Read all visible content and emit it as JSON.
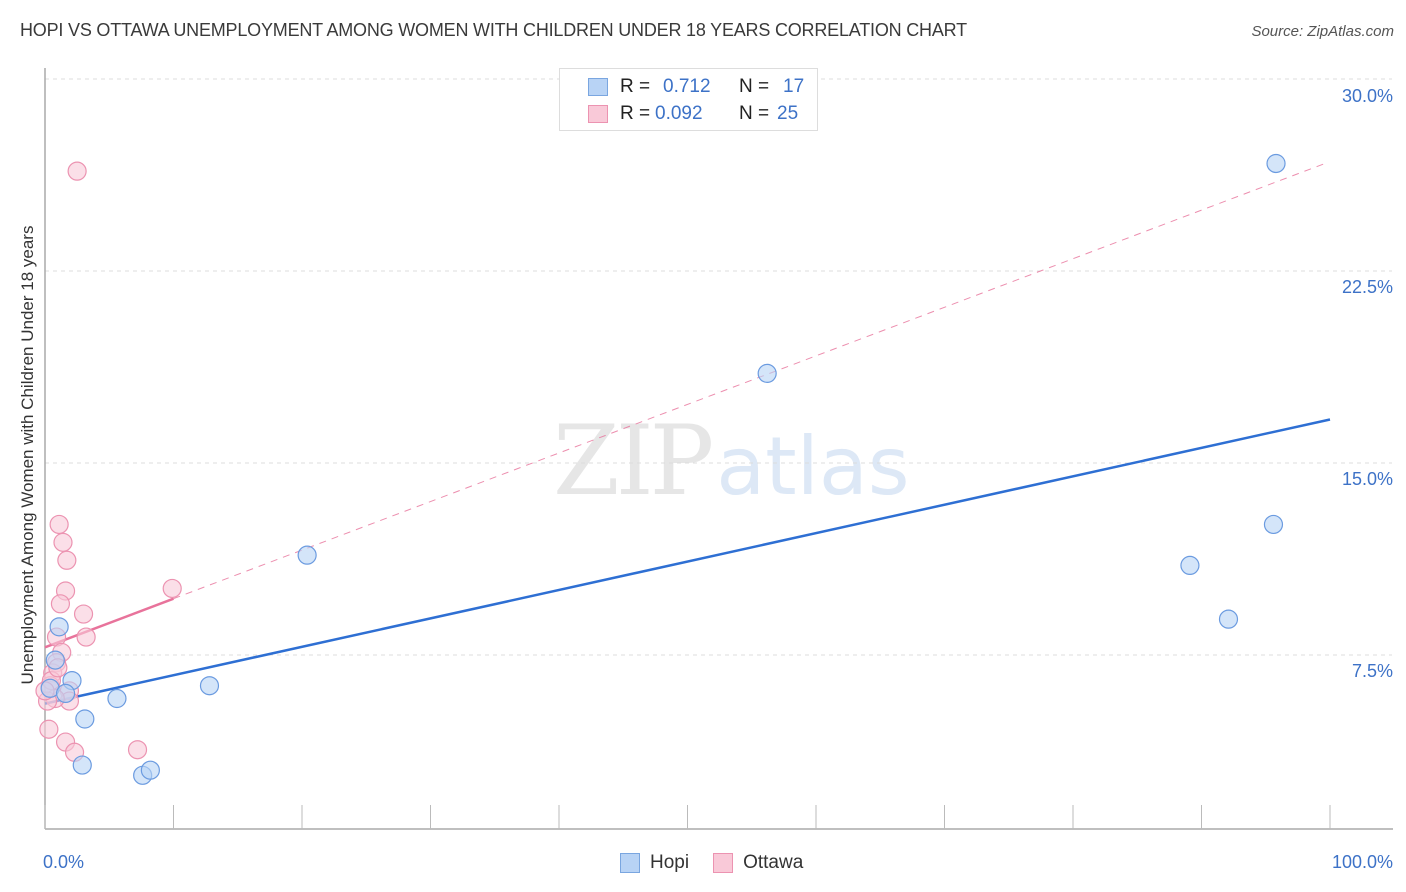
{
  "header": {
    "title": "HOPI VS OTTAWA UNEMPLOYMENT AMONG WOMEN WITH CHILDREN UNDER 18 YEARS CORRELATION CHART",
    "source": "Source: ZipAtlas.com"
  },
  "watermark": {
    "zip": "ZIP",
    "atlas": "atlas"
  },
  "axes": {
    "ylabel": "Unemployment Among Women with Children Under 18 years",
    "yticks": [
      "30.0%",
      "22.5%",
      "15.0%",
      "7.5%"
    ],
    "xticks": [
      "0.0%",
      "100.0%"
    ]
  },
  "legend": {
    "rows": [
      {
        "r_label": "R =",
        "r_value": "0.712",
        "n_label": "N =",
        "n_value": "17",
        "color": "#b8d3f5",
        "border": "#7aa6e0"
      },
      {
        "r_label": "R =",
        "r_value": "0.092",
        "n_label": "N =",
        "n_value": "25",
        "color": "#f9c9d8",
        "border": "#ec93b1"
      }
    ],
    "bottom": [
      "Hopi",
      "Ottawa"
    ]
  },
  "colors": {
    "hopi_fill": "#b8d3f5",
    "hopi_stroke": "#6b9be0",
    "hopi_line": "#2e6fd3",
    "ottawa_fill": "#f9c9d8",
    "ottawa_stroke": "#ec93b1",
    "ottawa_line": "#e8739b",
    "tick_text": "#3d72c7"
  },
  "chart_data": {
    "type": "scatter",
    "title": "HOPI VS OTTAWA UNEMPLOYMENT AMONG WOMEN WITH CHILDREN UNDER 18 YEARS CORRELATION CHART",
    "xlabel": "",
    "ylabel": "Unemployment Among Women with Children Under 18 years",
    "xlim": [
      0,
      100
    ],
    "ylim": [
      0,
      31
    ],
    "x_tick_labels": [
      "0.0%",
      "100.0%"
    ],
    "y_tick_labels": [
      "7.5%",
      "15.0%",
      "22.5%",
      "30.0%"
    ],
    "grid": true,
    "legend_position": "top-center and bottom",
    "series": [
      {
        "name": "Hopi",
        "R": 0.712,
        "N": 17,
        "points": [
          [
            95.8,
            26.7
          ],
          [
            56.2,
            18.5
          ],
          [
            20.4,
            11.4
          ],
          [
            95.6,
            12.6
          ],
          [
            89.1,
            11.0
          ],
          [
            92.1,
            8.9
          ],
          [
            12.8,
            6.3
          ],
          [
            5.6,
            5.8
          ],
          [
            3.1,
            5.0
          ],
          [
            2.9,
            3.2
          ],
          [
            7.6,
            2.8
          ],
          [
            8.2,
            3.0
          ],
          [
            1.1,
            8.6
          ],
          [
            2.1,
            6.5
          ],
          [
            0.8,
            7.3
          ],
          [
            0.4,
            6.2
          ],
          [
            1.6,
            6.0
          ]
        ],
        "trendline": {
          "x": [
            0,
            100
          ],
          "y": [
            5.6,
            16.7
          ],
          "style": "solid"
        }
      },
      {
        "name": "Ottawa",
        "R": 0.092,
        "N": 25,
        "points": [
          [
            2.5,
            26.4
          ],
          [
            1.1,
            12.6
          ],
          [
            1.4,
            11.9
          ],
          [
            1.7,
            11.2
          ],
          [
            1.6,
            10.0
          ],
          [
            1.2,
            9.5
          ],
          [
            3.0,
            9.1
          ],
          [
            3.2,
            8.2
          ],
          [
            9.9,
            10.1
          ],
          [
            0.9,
            8.2
          ],
          [
            1.3,
            7.6
          ],
          [
            0.9,
            7.2
          ],
          [
            0.6,
            6.8
          ],
          [
            0.4,
            6.3
          ],
          [
            1.9,
            6.1
          ],
          [
            1.9,
            5.7
          ],
          [
            0.8,
            5.8
          ],
          [
            0.2,
            5.7
          ],
          [
            0.3,
            4.6
          ],
          [
            1.6,
            4.1
          ],
          [
            2.3,
            3.7
          ],
          [
            7.2,
            3.8
          ],
          [
            0.5,
            6.5
          ],
          [
            1.0,
            7.0
          ],
          [
            0.0,
            6.1
          ]
        ],
        "trendline": {
          "x": [
            0,
            10
          ],
          "y": [
            7.8,
            9.7
          ],
          "style": "solid",
          "extended_dashed_to": [
            100,
            26.7
          ]
        }
      }
    ]
  }
}
